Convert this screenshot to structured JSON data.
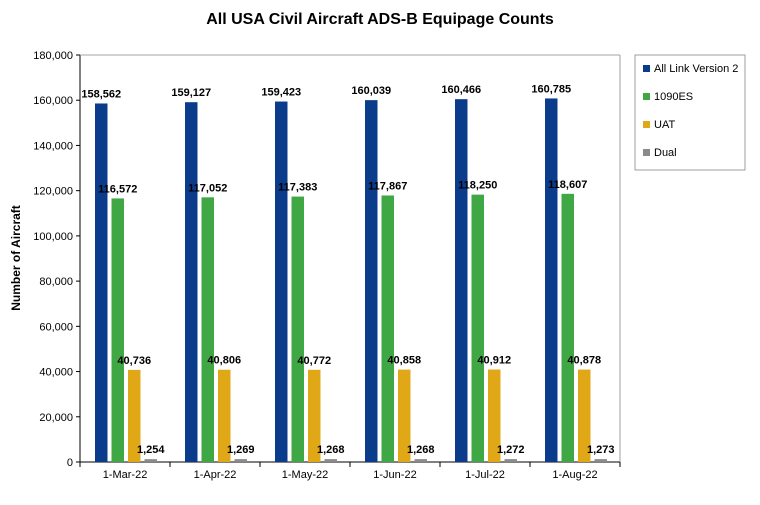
{
  "chart_data": {
    "type": "bar",
    "title": "All USA Civil Aircraft ADS-B Equipage Counts",
    "xlabel": "",
    "ylabel": "Number of Aircraft",
    "ylim": [
      0,
      180000
    ],
    "yticks": [
      0,
      20000,
      40000,
      60000,
      80000,
      100000,
      120000,
      140000,
      160000,
      180000
    ],
    "ytick_labels": [
      "0",
      "20,000",
      "40,000",
      "60,000",
      "80,000",
      "100,000",
      "120,000",
      "140,000",
      "160,000",
      "180,000"
    ],
    "grid": false,
    "legend_position": "right",
    "categories": [
      "1-Mar-22",
      "1-Apr-22",
      "1-May-22",
      "1-Jun-22",
      "1-Jul-22",
      "1-Aug-22"
    ],
    "series": [
      {
        "name": "All Link Version 2",
        "color": "#0b3c8c",
        "values": [
          158562,
          159127,
          159423,
          160039,
          160466,
          160785
        ],
        "labels": [
          "158,562",
          "159,127",
          "159,423",
          "160,039",
          "160,466",
          "160,785"
        ]
      },
      {
        "name": "1090ES",
        "color": "#3fa744",
        "values": [
          116572,
          117052,
          117383,
          117867,
          118250,
          118607
        ],
        "labels": [
          "116,572",
          "117,052",
          "117,383",
          "117,867",
          "118,250",
          "118,607"
        ]
      },
      {
        "name": "UAT",
        "color": "#e0a817",
        "values": [
          40736,
          40806,
          40772,
          40858,
          40912,
          40878
        ],
        "labels": [
          "40,736",
          "40,806",
          "40,772",
          "40,858",
          "40,912",
          "40,878"
        ]
      },
      {
        "name": "Dual",
        "color": "#8a8a8a",
        "values": [
          1254,
          1269,
          1268,
          1268,
          1272,
          1273
        ],
        "labels": [
          "1,254",
          "1,269",
          "1,268",
          "1,268",
          "1,272",
          "1,273"
        ]
      }
    ]
  }
}
